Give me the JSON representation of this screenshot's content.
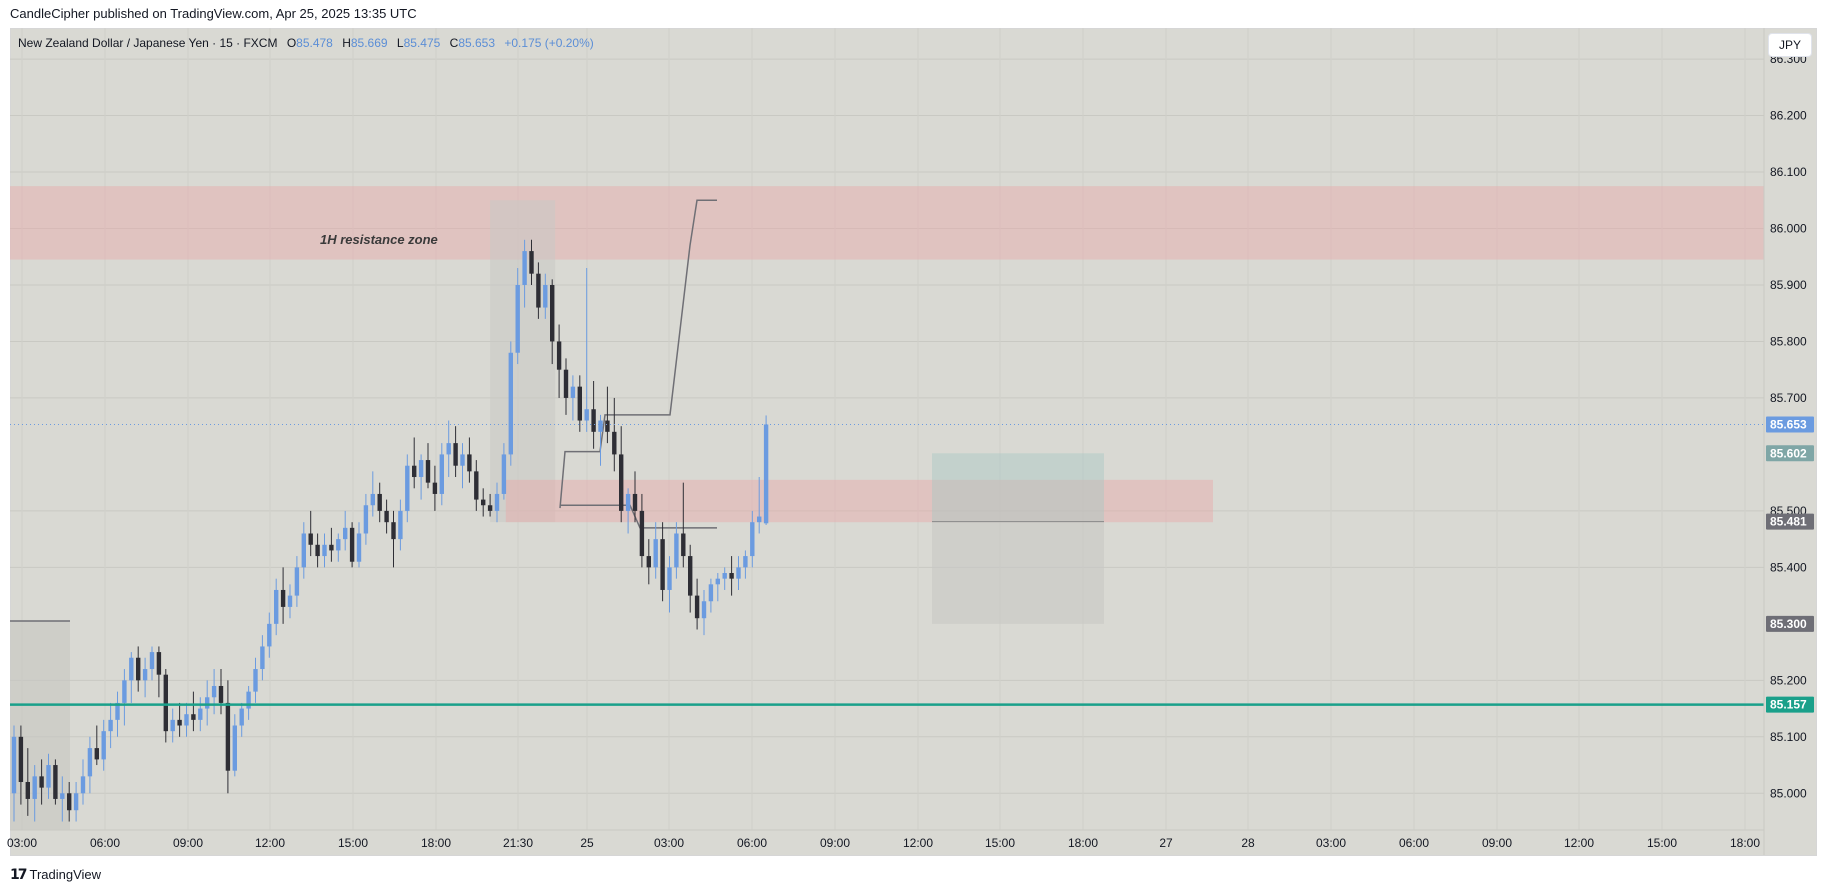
{
  "header": {
    "published": "CandleCipher published on TradingView.com, Apr 25, 2025 13:35 UTC"
  },
  "legend": {
    "symbol": "New Zealand Dollar / Japanese Yen · 15 · FXCM",
    "o_label": "O",
    "o_value": "85.478",
    "h_label": "H",
    "h_value": "85.669",
    "l_label": "L",
    "l_value": "85.475",
    "c_label": "C",
    "c_value": "85.653",
    "change": "+0.175 (+0.20%)"
  },
  "currency_button": "JPY",
  "footer": {
    "brand": "TradingView"
  },
  "colors": {
    "up": "#6b9be0",
    "down": "#2e2e35",
    "resistance_zone": "#e8a8a8",
    "support_line": "#1aa08a",
    "price_label_blue": "#6b9be0",
    "price_label_teal": "#7fa6a6",
    "price_label_grey": "#6e6e76"
  },
  "chart_data": {
    "type": "candlestick",
    "ylim": [
      84.935,
      86.355
    ],
    "y_ticks": [
      "86.300",
      "86.200",
      "86.100",
      "86.000",
      "85.900",
      "85.800",
      "85.700",
      "85.500",
      "85.400",
      "85.200",
      "85.100",
      "85.000"
    ],
    "x_ticks": [
      "03:00",
      "06:00",
      "09:00",
      "12:00",
      "15:00",
      "18:00",
      "21:30",
      "25",
      "03:00",
      "06:00",
      "09:00",
      "12:00",
      "15:00",
      "18:00",
      "27",
      "28",
      "03:00",
      "06:00",
      "09:00",
      "12:00",
      "15:00",
      "18:00"
    ],
    "annotations": {
      "resistance_zone": {
        "label": "1H resistance zone",
        "top": 86.075,
        "bottom": 85.945
      },
      "support_line": {
        "value": 85.157,
        "label": "85.157"
      },
      "last_price_line": {
        "value": 85.653
      }
    },
    "price_labels": [
      {
        "text": "85.653",
        "value": 85.653,
        "kind": "blue"
      },
      {
        "text": "85.602",
        "value": 85.602,
        "kind": "teal"
      },
      {
        "text": "85.481",
        "value": 85.481,
        "kind": "grey"
      },
      {
        "text": "85.300",
        "value": 85.3,
        "kind": "grey"
      },
      {
        "text": "85.157",
        "value": 85.157,
        "kind": "green"
      }
    ],
    "candles": [
      [
        85.0,
        85.12,
        84.95,
        85.1
      ],
      [
        85.1,
        85.12,
        84.98,
        85.02
      ],
      [
        85.02,
        85.08,
        84.96,
        84.99
      ],
      [
        84.99,
        85.05,
        84.95,
        85.03
      ],
      [
        85.03,
        85.06,
        84.98,
        85.01
      ],
      [
        85.01,
        85.07,
        84.99,
        85.05
      ],
      [
        85.05,
        85.06,
        84.98,
        84.99
      ],
      [
        84.99,
        85.03,
        84.95,
        85.0
      ],
      [
        85.0,
        85.02,
        84.95,
        84.97
      ],
      [
        84.97,
        85.02,
        84.95,
        85.0
      ],
      [
        85.0,
        85.06,
        84.98,
        85.03
      ],
      [
        85.03,
        85.1,
        85.0,
        85.08
      ],
      [
        85.08,
        85.12,
        85.05,
        85.06
      ],
      [
        85.06,
        85.13,
        85.04,
        85.11
      ],
      [
        85.11,
        85.16,
        85.08,
        85.13
      ],
      [
        85.13,
        85.18,
        85.1,
        85.16
      ],
      [
        85.16,
        85.22,
        85.12,
        85.2
      ],
      [
        85.2,
        85.25,
        85.16,
        85.24
      ],
      [
        85.24,
        85.26,
        85.18,
        85.2
      ],
      [
        85.2,
        85.24,
        85.17,
        85.22
      ],
      [
        85.22,
        85.26,
        85.2,
        85.25
      ],
      [
        85.25,
        85.26,
        85.17,
        85.21
      ],
      [
        85.21,
        85.22,
        85.09,
        85.11
      ],
      [
        85.11,
        85.15,
        85.09,
        85.13
      ],
      [
        85.13,
        85.16,
        85.1,
        85.12
      ],
      [
        85.12,
        85.16,
        85.1,
        85.14
      ],
      [
        85.14,
        85.18,
        85.11,
        85.13
      ],
      [
        85.13,
        85.17,
        85.11,
        85.15
      ],
      [
        85.15,
        85.2,
        85.12,
        85.17
      ],
      [
        85.17,
        85.22,
        85.14,
        85.19
      ],
      [
        85.19,
        85.22,
        85.14,
        85.16
      ],
      [
        85.16,
        85.2,
        85.0,
        85.04
      ],
      [
        85.04,
        85.14,
        85.03,
        85.12
      ],
      [
        85.12,
        85.16,
        85.1,
        85.15
      ],
      [
        85.15,
        85.19,
        85.13,
        85.18
      ],
      [
        85.18,
        85.24,
        85.16,
        85.22
      ],
      [
        85.22,
        85.28,
        85.2,
        85.26
      ],
      [
        85.26,
        85.32,
        85.24,
        85.3
      ],
      [
        85.3,
        85.38,
        85.28,
        85.36
      ],
      [
        85.36,
        85.4,
        85.3,
        85.33
      ],
      [
        85.33,
        85.37,
        85.31,
        85.35
      ],
      [
        85.35,
        85.42,
        85.33,
        85.4
      ],
      [
        85.4,
        85.48,
        85.38,
        85.46
      ],
      [
        85.46,
        85.5,
        85.42,
        85.44
      ],
      [
        85.44,
        85.46,
        85.4,
        85.42
      ],
      [
        85.42,
        85.46,
        85.4,
        85.44
      ],
      [
        85.44,
        85.47,
        85.41,
        85.43
      ],
      [
        85.43,
        85.46,
        85.41,
        85.45
      ],
      [
        85.45,
        85.5,
        85.43,
        85.47
      ],
      [
        85.47,
        85.48,
        85.4,
        85.41
      ],
      [
        85.41,
        85.48,
        85.4,
        85.46
      ],
      [
        85.46,
        85.53,
        85.44,
        85.51
      ],
      [
        85.51,
        85.57,
        85.49,
        85.53
      ],
      [
        85.53,
        85.55,
        85.48,
        85.5
      ],
      [
        85.5,
        85.52,
        85.46,
        85.48
      ],
      [
        85.48,
        85.5,
        85.4,
        85.45
      ],
      [
        85.45,
        85.52,
        85.43,
        85.5
      ],
      [
        85.5,
        85.6,
        85.48,
        85.58
      ],
      [
        85.58,
        85.63,
        85.54,
        85.56
      ],
      [
        85.56,
        85.6,
        85.52,
        85.59
      ],
      [
        85.59,
        85.62,
        85.54,
        85.55
      ],
      [
        85.55,
        85.58,
        85.5,
        85.53
      ],
      [
        85.53,
        85.62,
        85.51,
        85.6
      ],
      [
        85.6,
        85.66,
        85.56,
        85.62
      ],
      [
        85.62,
        85.65,
        85.56,
        85.58
      ],
      [
        85.58,
        85.62,
        85.54,
        85.6
      ],
      [
        85.6,
        85.63,
        85.55,
        85.57
      ],
      [
        85.57,
        85.59,
        85.5,
        85.52
      ],
      [
        85.52,
        85.54,
        85.49,
        85.51
      ],
      [
        85.51,
        85.53,
        85.49,
        85.5
      ],
      [
        85.5,
        85.55,
        85.48,
        85.53
      ],
      [
        85.53,
        85.62,
        85.52,
        85.6
      ],
      [
        85.6,
        85.8,
        85.58,
        85.78
      ],
      [
        85.78,
        85.93,
        85.76,
        85.9
      ],
      [
        85.9,
        85.98,
        85.86,
        85.96
      ],
      [
        85.96,
        85.98,
        85.9,
        85.92
      ],
      [
        85.92,
        85.94,
        85.84,
        85.86
      ],
      [
        85.86,
        85.92,
        85.84,
        85.9
      ],
      [
        85.9,
        85.91,
        85.76,
        85.8
      ],
      [
        85.8,
        85.83,
        85.7,
        85.75
      ],
      [
        85.75,
        85.77,
        85.67,
        85.7
      ],
      [
        85.7,
        85.74,
        85.66,
        85.72
      ],
      [
        85.72,
        85.74,
        85.64,
        85.66
      ],
      [
        85.66,
        85.93,
        85.64,
        85.68
      ],
      [
        85.68,
        85.73,
        85.61,
        85.64
      ],
      [
        85.64,
        85.67,
        85.58,
        85.66
      ],
      [
        85.66,
        85.72,
        85.62,
        85.64
      ],
      [
        85.64,
        85.7,
        85.57,
        85.6
      ],
      [
        85.6,
        85.65,
        85.48,
        85.5
      ],
      [
        85.5,
        85.54,
        85.46,
        85.53
      ],
      [
        85.53,
        85.57,
        85.48,
        85.5
      ],
      [
        85.5,
        85.53,
        85.4,
        85.42
      ],
      [
        85.42,
        85.45,
        85.37,
        85.4
      ],
      [
        85.4,
        85.48,
        85.38,
        85.45
      ],
      [
        85.45,
        85.48,
        85.34,
        85.36
      ],
      [
        85.36,
        85.42,
        85.32,
        85.4
      ],
      [
        85.4,
        85.48,
        85.38,
        85.46
      ],
      [
        85.46,
        85.55,
        85.4,
        85.42
      ],
      [
        85.42,
        85.44,
        85.32,
        85.35
      ],
      [
        85.35,
        85.38,
        85.29,
        85.31
      ],
      [
        85.31,
        85.36,
        85.28,
        85.34
      ],
      [
        85.34,
        85.38,
        85.32,
        85.37
      ],
      [
        85.37,
        85.39,
        85.34,
        85.38
      ],
      [
        85.38,
        85.4,
        85.36,
        85.39
      ],
      [
        85.39,
        85.42,
        85.35,
        85.38
      ],
      [
        85.38,
        85.42,
        85.36,
        85.4
      ],
      [
        85.4,
        85.43,
        85.38,
        85.42
      ],
      [
        85.42,
        85.5,
        85.4,
        85.48
      ],
      [
        85.48,
        85.56,
        85.46,
        85.49
      ],
      [
        85.478,
        85.669,
        85.475,
        85.653
      ]
    ]
  }
}
